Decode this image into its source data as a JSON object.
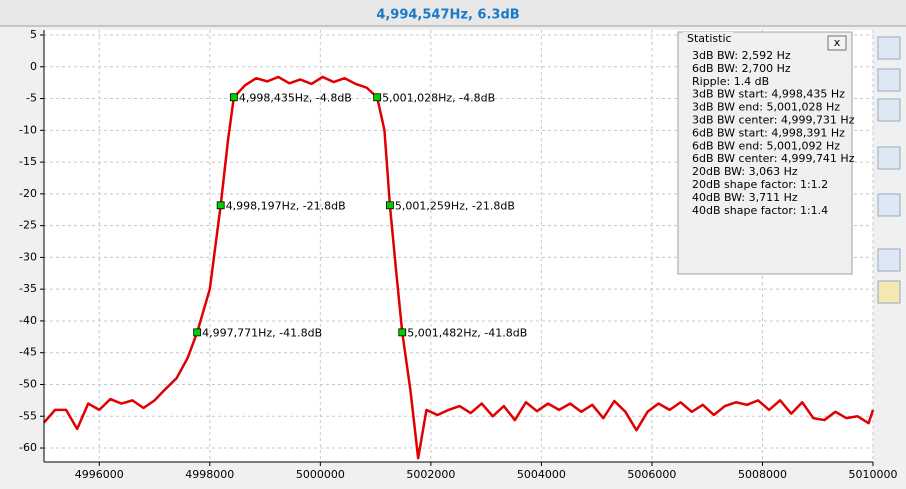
{
  "chart_data": {
    "type": "line",
    "title": "4,994,547Hz, 6.3dB",
    "xlim": [
      4995000,
      5010000
    ],
    "ylim": [
      -62.2,
      5
    ],
    "xticks": [
      4996000,
      4998000,
      5000000,
      5002000,
      5004000,
      5006000,
      5008000,
      5010000
    ],
    "yticks": [
      5,
      0,
      -5,
      -10,
      -15,
      -20,
      -25,
      -30,
      -35,
      -40,
      -45,
      -50,
      -55,
      -60
    ],
    "grid": true,
    "series": [
      {
        "color": "#e00000",
        "x": [
          4995000,
          4995200,
          4995400,
          4995600,
          4995800,
          4996000,
          4996200,
          4996400,
          4996600,
          4996800,
          4997000,
          4997200,
          4997400,
          4997600,
          4997771,
          4998000,
          4998197,
          4998330,
          4998435,
          4998640,
          4998840,
          4999040,
          4999240,
          4999440,
          4999640,
          4999840,
          5000040,
          5000240,
          5000440,
          5000640,
          5000840,
          5001028,
          5001160,
          5001259,
          5001370,
          5001482,
          5001630,
          5001770,
          5001920,
          5002120,
          5002320,
          5002520,
          5002720,
          5002920,
          5003120,
          5003320,
          5003520,
          5003720,
          5003920,
          5004120,
          5004320,
          5004520,
          5004720,
          5004920,
          5005120,
          5005320,
          5005520,
          5005720,
          5005920,
          5006120,
          5006320,
          5006520,
          5006720,
          5006920,
          5007120,
          5007320,
          5007520,
          5007720,
          5007920,
          5008120,
          5008320,
          5008520,
          5008720,
          5008920,
          5009120,
          5009320,
          5009520,
          5009720,
          5009920,
          5010000
        ],
        "values": [
          -56,
          -54,
          -54,
          -57,
          -53,
          -54,
          -52.3,
          -53,
          -52.5,
          -53.7,
          -52.5,
          -50.7,
          -49,
          -45.8,
          -41.8,
          -35,
          -21.8,
          -11.5,
          -4.8,
          -2.9,
          -1.8,
          -2.3,
          -1.6,
          -2.6,
          -2,
          -2.7,
          -1.6,
          -2.4,
          -1.8,
          -2.7,
          -3.3,
          -4.8,
          -10,
          -21.8,
          -32,
          -41.8,
          -50.9,
          -61.6,
          -54,
          -54.8,
          -54,
          -53.4,
          -54.5,
          -53,
          -55,
          -53.4,
          -55.6,
          -52.8,
          -54.2,
          -53,
          -54,
          -53,
          -54.3,
          -53.2,
          -55.3,
          -52.6,
          -54.3,
          -57.2,
          -54.3,
          -53,
          -54,
          -52.8,
          -54.3,
          -53.2,
          -54.8,
          -53.4,
          -52.8,
          -53.2,
          -52.5,
          -54,
          -52.5,
          -54.6,
          -52.8,
          -55.3,
          -55.6,
          -54.3,
          -55.3,
          -55,
          -56.1,
          -54
        ]
      }
    ],
    "markers": {
      "color": "#00d000",
      "x": [
        4998435,
        5001028,
        4998197,
        5001259,
        4997771,
        5001482
      ],
      "y": [
        -4.8,
        -4.8,
        -21.8,
        -21.8,
        -41.8,
        -41.8
      ],
      "labels": [
        "4,998,435Hz, -4.8dB",
        "5,001,028Hz, -4.8dB",
        "4,998,197Hz, -21.8dB",
        "5,001,259Hz, -21.8dB",
        "4,997,771Hz, -41.8dB",
        "5,001,482Hz, -41.8dB"
      ]
    }
  },
  "statistic": {
    "title": "Statistic",
    "close": "x",
    "lines": [
      "3dB BW: 2,592 Hz",
      "6dB BW: 2,700 Hz",
      "Ripple: 1.4 dB",
      "3dB BW start: 4,998,435 Hz",
      "3dB BW end: 5,001,028 Hz",
      "3dB BW center: 4,999,731 Hz",
      "6dB BW start: 4,998,391 Hz",
      "6dB BW end: 5,001,092 Hz",
      "6dB BW center: 4,999,741 Hz",
      "20dB BW: 3,063 Hz",
      "20dB shape factor: 1:1.2",
      "40dB BW: 3,711 Hz",
      "40dB shape factor: 1:1.4"
    ]
  }
}
